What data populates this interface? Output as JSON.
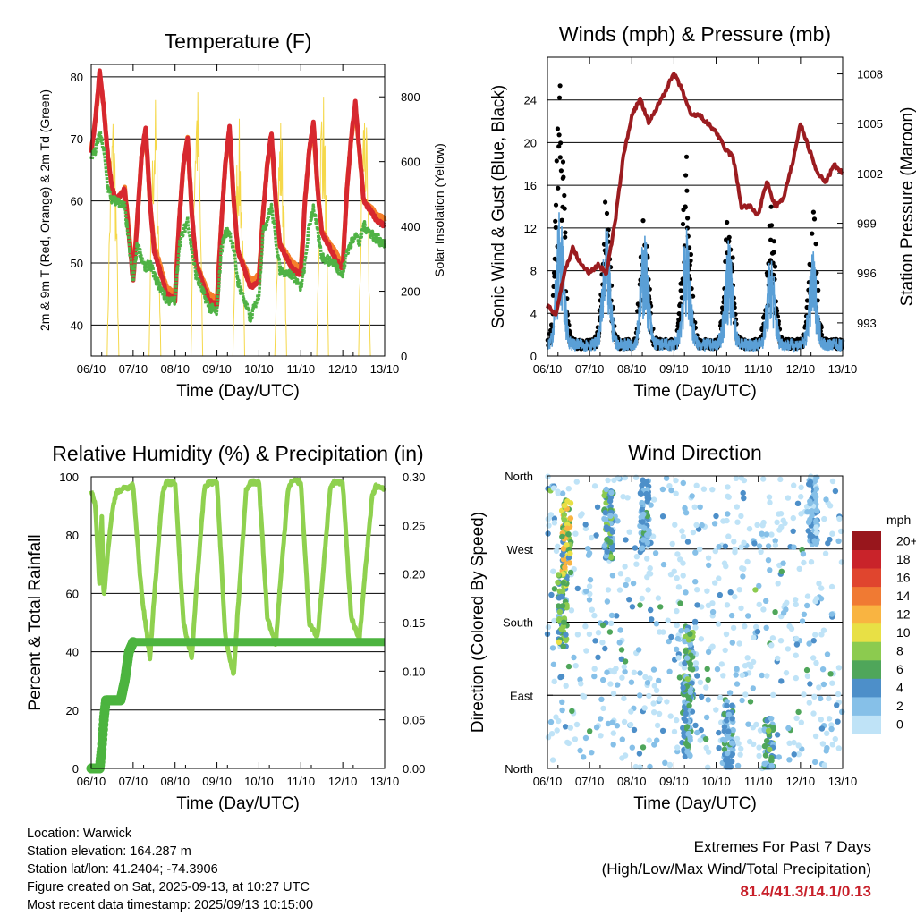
{
  "chart_data": [
    {
      "type": "line",
      "title": "Temperature (F)",
      "xlabel": "Time (Day/UTC)",
      "ylabel": "2m & 9m T (Red, Orange) & 2m Td (Green)",
      "y2label": "Solar Insolation (Yellow)",
      "ylim": [
        35,
        82
      ],
      "yticks": [
        40,
        50,
        60,
        70,
        80
      ],
      "y2lim": [
        0,
        900
      ],
      "y2ticks": [
        0,
        200,
        400,
        600,
        800
      ],
      "xticks": [
        "06/10",
        "07/10",
        "08/10",
        "09/10",
        "10/10",
        "11/10",
        "12/10",
        "13/10"
      ],
      "x": [
        0,
        0.1,
        0.2,
        0.3,
        0.4,
        0.5,
        0.6,
        0.8,
        1.0,
        1.1,
        1.2,
        1.3,
        1.4,
        1.5,
        1.8,
        2.0,
        2.1,
        2.2,
        2.3,
        2.4,
        2.5,
        2.8,
        3.0,
        3.1,
        3.2,
        3.3,
        3.4,
        3.5,
        3.8,
        4.0,
        4.1,
        4.2,
        4.3,
        4.4,
        4.5,
        4.8,
        5.0,
        5.1,
        5.2,
        5.3,
        5.4,
        5.5,
        5.8,
        6.0,
        6.1,
        6.2,
        6.3,
        6.4,
        6.5,
        6.8,
        7.0
      ],
      "series": [
        {
          "name": "2m T",
          "color": "#d7282f",
          "values": [
            68,
            73,
            81,
            75,
            67,
            62,
            60,
            62,
            47,
            57,
            67,
            72,
            60,
            52,
            45,
            44,
            57,
            66,
            70,
            58,
            50,
            44,
            43,
            56,
            66,
            72,
            60,
            52,
            46,
            47,
            58,
            66,
            71,
            60,
            53,
            49,
            48,
            60,
            68,
            73,
            62,
            55,
            51,
            49,
            62,
            70,
            76,
            68,
            60,
            57,
            56
          ]
        },
        {
          "name": "9m T",
          "color": "#f57f2b",
          "values": [
            68,
            73,
            80,
            75,
            67,
            62,
            60,
            62,
            48,
            57,
            67,
            71,
            60,
            53,
            46,
            45,
            57,
            66,
            70,
            58,
            50,
            45,
            44,
            56,
            66,
            71,
            60,
            52,
            47,
            48,
            58,
            66,
            70,
            60,
            53,
            50,
            49,
            60,
            68,
            72,
            62,
            55,
            52,
            50,
            62,
            70,
            75,
            68,
            60,
            58,
            57
          ]
        },
        {
          "name": "2m Td",
          "color": "#4fb245",
          "values": [
            67,
            68,
            71,
            68,
            62,
            60,
            60,
            59,
            47,
            53,
            51,
            49,
            50,
            48,
            44,
            44,
            53,
            55,
            57,
            52,
            48,
            43,
            42,
            52,
            55,
            55,
            52,
            47,
            41,
            45,
            55,
            57,
            59,
            54,
            49,
            48,
            46,
            50,
            56,
            59,
            55,
            51,
            50,
            48,
            52,
            53,
            55,
            53,
            56,
            54,
            53
          ]
        }
      ]
    },
    {
      "type": "scatter",
      "title": "Winds (mph) & Pressure (mb)",
      "xlabel": "Time (Day/UTC)",
      "ylabel": "Sonic Wind & Gust (Blue, Black)",
      "y2label": "Station Pressure (Maroon)",
      "ylim": [
        0,
        28
      ],
      "yticks": [
        0,
        4,
        8,
        12,
        16,
        20,
        24
      ],
      "y2lim": [
        991,
        1009
      ],
      "y2ticks": [
        993,
        996,
        999,
        1002,
        1005,
        1008
      ],
      "xticks": [
        "06/10",
        "07/10",
        "08/10",
        "09/10",
        "10/10",
        "11/10",
        "12/10",
        "13/10"
      ],
      "pressure": {
        "name": "Station Pressure",
        "color": "#9b1c20",
        "x": [
          0,
          0.2,
          0.4,
          0.6,
          0.8,
          1.0,
          1.2,
          1.4,
          1.6,
          1.8,
          2.0,
          2.2,
          2.4,
          2.6,
          2.8,
          3.0,
          3.2,
          3.4,
          3.6,
          3.8,
          4.0,
          4.2,
          4.4,
          4.6,
          4.8,
          5.0,
          5.2,
          5.4,
          5.6,
          5.8,
          6.0,
          6.2,
          6.4,
          6.6,
          6.8,
          7.0
        ],
        "values": [
          994,
          993.5,
          996,
          997.5,
          996.5,
          996,
          996.5,
          996,
          999,
          1003,
          1005.5,
          1006.5,
          1005,
          1006,
          1007,
          1008,
          1007,
          1005.5,
          1005.5,
          1005,
          1004.5,
          1003.5,
          1003,
          1000,
          1000,
          999.5,
          1001.5,
          1000,
          1000.5,
          1002.5,
          1005,
          1003.5,
          1002,
          1001.5,
          1002.5,
          1002
        ]
      },
      "wind_daily_peaks": {
        "x": [
          0.3,
          1.4,
          2.3,
          3.3,
          4.3,
          5.3,
          6.3
        ],
        "sustained": [
          13,
          11,
          11,
          11,
          10,
          9,
          9
        ],
        "gust": [
          25,
          15,
          14,
          18,
          14,
          14,
          13
        ]
      }
    },
    {
      "type": "line",
      "title": "Relative Humidity (%) & Precipitation (in)",
      "xlabel": "Time (Day/UTC)",
      "ylabel": "Percent & Total Rainfall",
      "ylim": [
        0,
        100
      ],
      "yticks": [
        0,
        20,
        40,
        60,
        80,
        100
      ],
      "y2lim": [
        0,
        0.3
      ],
      "y2ticks": [
        "0.00",
        "0.05",
        "0.10",
        "0.15",
        "0.20",
        "0.25",
        "0.30"
      ],
      "xticks": [
        "06/10",
        "07/10",
        "08/10",
        "09/10",
        "10/10",
        "11/10",
        "12/10",
        "13/10"
      ],
      "rh": {
        "name": "Relative Humidity",
        "color": "#8fd14f",
        "x": [
          0,
          0.1,
          0.2,
          0.25,
          0.3,
          0.4,
          0.5,
          0.6,
          0.8,
          1.0,
          1.2,
          1.4,
          1.5,
          1.7,
          1.8,
          2.0,
          2.2,
          2.4,
          2.5,
          2.7,
          2.8,
          3.0,
          3.2,
          3.4,
          3.5,
          3.7,
          3.8,
          4.0,
          4.2,
          4.4,
          4.5,
          4.7,
          4.8,
          5.0,
          5.2,
          5.4,
          5.5,
          5.7,
          5.8,
          6.0,
          6.2,
          6.4,
          6.5,
          6.7,
          6.8,
          7.0
        ],
        "values": [
          95,
          90,
          62,
          88,
          58,
          75,
          88,
          95,
          96,
          97,
          60,
          38,
          58,
          95,
          98,
          98,
          50,
          38,
          60,
          96,
          98,
          98,
          45,
          32,
          55,
          96,
          98,
          98,
          52,
          42,
          62,
          96,
          99,
          98,
          50,
          45,
          62,
          96,
          98,
          98,
          52,
          44,
          62,
          93,
          97,
          96
        ]
      },
      "precip": {
        "name": "Total Rainfall",
        "color": "#4cb43f",
        "x": [
          0,
          0.2,
          0.25,
          0.3,
          0.35,
          0.4,
          0.5,
          0.7,
          0.8,
          0.9,
          1.0,
          7.0
        ],
        "values": [
          0,
          0,
          0.02,
          0.05,
          0.07,
          0.07,
          0.07,
          0.07,
          0.09,
          0.12,
          0.13,
          0.13
        ]
      }
    },
    {
      "type": "scatter",
      "title": "Wind Direction",
      "xlabel": "Time (Day/UTC)",
      "ylabel": "Direction (Colored By Speed)",
      "yticks": [
        "North",
        "East",
        "South",
        "West",
        "North"
      ],
      "ylim": [
        0,
        360
      ],
      "xticks": [
        "06/10",
        "07/10",
        "08/10",
        "09/10",
        "10/10",
        "11/10",
        "12/10",
        "13/10"
      ],
      "colorbar": {
        "title": "mph",
        "labels": [
          "0",
          "2",
          "4",
          "6",
          "8",
          "10",
          "12",
          "14",
          "16",
          "18",
          "20+"
        ],
        "colors": [
          "#bfe3f7",
          "#86c0e8",
          "#4d8fc9",
          "#4fa65a",
          "#8ccb4f",
          "#e8e045",
          "#f9b441",
          "#f07a33",
          "#e0452e",
          "#c9232a",
          "#98161c"
        ]
      },
      "clusters": [
        {
          "x": 0.45,
          "dir": 285,
          "speed": 13
        },
        {
          "x": 0.35,
          "dir": 195,
          "speed": 10
        },
        {
          "x": 1.45,
          "dir": 300,
          "speed": 9
        },
        {
          "x": 2.3,
          "dir": 310,
          "speed": 6
        },
        {
          "x": 3.35,
          "dir": 130,
          "speed": 9
        },
        {
          "x": 3.3,
          "dir": 60,
          "speed": 7
        },
        {
          "x": 4.3,
          "dir": 40,
          "speed": 6
        },
        {
          "x": 5.25,
          "dir": 20,
          "speed": 8
        },
        {
          "x": 6.3,
          "dir": 320,
          "speed": 5
        }
      ]
    }
  ],
  "station": {
    "location": "Location: Warwick",
    "elevation": "Station elevation: 164.287 m",
    "latlon": "Station lat/lon: 41.2404; -74.3906",
    "created": "Figure created on Sat, 2025-09-13, at 10:27 UTC",
    "latest": "Most recent data timestamp: 2025/09/13 10:15:00"
  },
  "extremes": {
    "title": "Extremes For Past 7 Days",
    "subtitle": "(High/Low/Max Wind/Total Precipitation)",
    "values": "81.4/41.3/14.1/0.13"
  }
}
